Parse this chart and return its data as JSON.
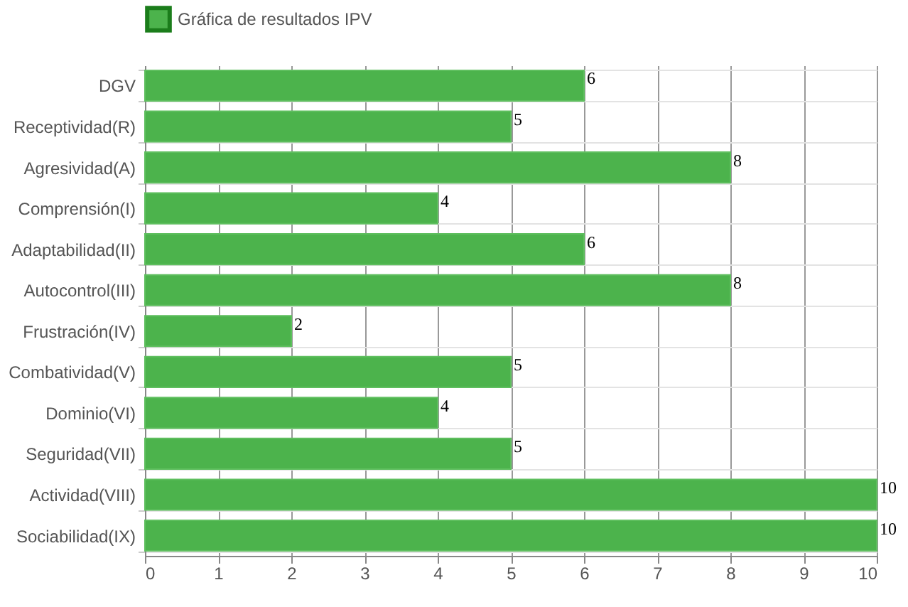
{
  "chart_data": {
    "type": "bar",
    "orientation": "horizontal",
    "categories": [
      "DGV",
      "Receptividad(R)",
      "Agresividad(A)",
      "Comprensión(I)",
      "Adaptabilidad(II)",
      "Autocontrol(III)",
      "Frustración(IV)",
      "Combatividad(V)",
      "Dominio(VI)",
      "Seguridad(VII)",
      "Actividad(VIII)",
      "Sociabilidad(IX)"
    ],
    "series": [
      {
        "name": "Gráfica de resultados IPV",
        "color": "#4cb34c",
        "values": [
          6,
          5,
          8,
          4,
          6,
          8,
          2,
          5,
          4,
          5,
          10,
          10
        ]
      }
    ],
    "xlim": [
      0,
      10
    ],
    "xticks": [
      0,
      1,
      2,
      3,
      4,
      5,
      6,
      7,
      8,
      9,
      10
    ],
    "grid": true,
    "legend": "top",
    "data_labels": true
  }
}
